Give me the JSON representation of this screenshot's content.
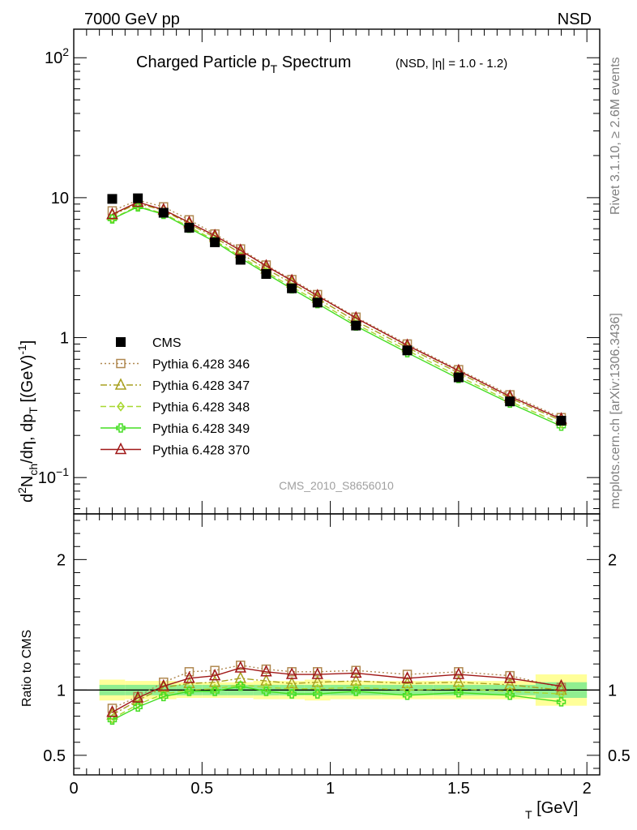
{
  "header": {
    "left": "7000 GeV pp",
    "right": "NSD"
  },
  "side_labels": {
    "rivet": "Rivet 3.1.10, ≥ 2.6M events",
    "mcplots": "mcplots.cern.ch [arXiv:1306.3436]"
  },
  "chart_data": [
    {
      "type": "line",
      "title": "Charged Particle p_T Spectrum",
      "title_parts": {
        "main": "Charged Particle p",
        "sub": "T",
        "tail": " Spectrum",
        "cut": "(NSD, |η| = 1.0 - 1.2)"
      },
      "ylabel": "d²N_ch/dη, dp_T [(GeV)⁻¹]",
      "ylabel_parts": {
        "a": "d",
        "sup2": "2",
        "b": "N",
        "sub_ch": "ch",
        "c": "/dη, dp",
        "sub_t": "T",
        "d": " [(GeV)",
        "sup_m1": "-1",
        "e": "]"
      },
      "xlabel": "p_T [GeV]",
      "xlabel_parts": {
        "a": "p",
        "sub": "T",
        "b": " [GeV]"
      },
      "yscale": "log",
      "xlim": [
        0,
        2.05
      ],
      "ylim": [
        0.055,
        160
      ],
      "yticks": [
        {
          "value": 0.1,
          "base": "10",
          "exp": "−1"
        },
        {
          "value": 1,
          "base": "1",
          "exp": ""
        },
        {
          "value": 10,
          "base": "10",
          "exp": ""
        },
        {
          "value": 100,
          "base": "10",
          "exp": "2"
        }
      ],
      "legend_position": "left-center",
      "watermark": "CMS_2010_S8656010",
      "series": [
        {
          "name": "CMS",
          "marker": "filled-square",
          "color": "#000000",
          "line": "none",
          "x": [
            0.15,
            0.25,
            0.35,
            0.45,
            0.55,
            0.65,
            0.75,
            0.85,
            0.95,
            1.1,
            1.3,
            1.5,
            1.7,
            1.9
          ],
          "y": [
            9.8,
            9.9,
            7.8,
            6.1,
            4.8,
            3.6,
            2.85,
            2.25,
            1.78,
            1.22,
            0.81,
            0.52,
            0.35,
            0.255
          ]
        },
        {
          "name": "Pythia 6.428 346",
          "marker": "open-square",
          "color": "#b08850",
          "line": "dotted",
          "x": [
            0.15,
            0.25,
            0.35,
            0.45,
            0.55,
            0.65,
            0.75,
            0.85,
            0.95,
            1.1,
            1.3,
            1.5,
            1.7,
            1.9
          ],
          "y": [
            8.05,
            9.6,
            8.6,
            6.95,
            5.5,
            4.3,
            3.3,
            2.6,
            2.03,
            1.4,
            0.9,
            0.59,
            0.39,
            0.268
          ]
        },
        {
          "name": "Pythia 6.428 347",
          "marker": "open-triangle",
          "color": "#a8a020",
          "line": "dashdot",
          "x": [
            0.15,
            0.25,
            0.35,
            0.45,
            0.55,
            0.65,
            0.75,
            0.85,
            0.95,
            1.1,
            1.3,
            1.5,
            1.7,
            1.9
          ],
          "y": [
            7.5,
            9.1,
            8.1,
            6.5,
            5.2,
            4.0,
            3.1,
            2.45,
            1.91,
            1.31,
            0.85,
            0.56,
            0.37,
            0.255
          ]
        },
        {
          "name": "Pythia 6.428 348",
          "marker": "open-diamond",
          "color": "#a8d830",
          "line": "dashed",
          "x": [
            0.15,
            0.25,
            0.35,
            0.45,
            0.55,
            0.65,
            0.75,
            0.85,
            0.95,
            1.1,
            1.3,
            1.5,
            1.7,
            1.9
          ],
          "y": [
            7.1,
            8.7,
            7.7,
            6.2,
            4.95,
            3.8,
            2.95,
            2.3,
            1.82,
            1.25,
            0.81,
            0.53,
            0.35,
            0.242
          ]
        },
        {
          "name": "Pythia 6.428 349",
          "marker": "open-cross",
          "color": "#44dd22",
          "line": "solid",
          "x": [
            0.15,
            0.25,
            0.35,
            0.45,
            0.55,
            0.65,
            0.75,
            0.85,
            0.95,
            1.1,
            1.3,
            1.5,
            1.7,
            1.9
          ],
          "y": [
            7.05,
            8.6,
            7.6,
            6.05,
            4.85,
            3.7,
            2.87,
            2.23,
            1.75,
            1.21,
            0.78,
            0.51,
            0.34,
            0.233
          ]
        },
        {
          "name": "Pythia 6.428 370",
          "marker": "open-triangle",
          "color": "#a01818",
          "line": "solid",
          "x": [
            0.15,
            0.25,
            0.35,
            0.45,
            0.55,
            0.65,
            0.75,
            0.85,
            0.95,
            1.1,
            1.3,
            1.5,
            1.7,
            1.9
          ],
          "y": [
            7.6,
            9.3,
            8.2,
            6.65,
            5.35,
            4.2,
            3.25,
            2.55,
            1.99,
            1.38,
            0.88,
            0.58,
            0.38,
            0.262
          ]
        }
      ]
    },
    {
      "type": "line",
      "title": "",
      "ylabel": "Ratio to CMS",
      "xlabel": "p_T [GeV]",
      "xlim": [
        0,
        2.05
      ],
      "ylim": [
        0.35,
        2.35
      ],
      "xticks": [
        {
          "value": 0,
          "label": "0"
        },
        {
          "value": 0.5,
          "label": "0.5"
        },
        {
          "value": 1,
          "label": "1"
        },
        {
          "value": 1.5,
          "label": "1.5"
        },
        {
          "value": 2,
          "label": "2"
        }
      ],
      "yticks": [
        {
          "value": 0.5,
          "label": "0.5"
        },
        {
          "value": 1,
          "label": "1"
        },
        {
          "value": 2,
          "label": "2"
        }
      ],
      "reference_line": 1,
      "uncertainty_bands": {
        "bins": [
          [
            0.1,
            0.2
          ],
          [
            0.2,
            0.3
          ],
          [
            0.3,
            0.4
          ],
          [
            0.4,
            0.5
          ],
          [
            0.5,
            0.6
          ],
          [
            0.6,
            0.7
          ],
          [
            0.7,
            0.8
          ],
          [
            0.8,
            0.9
          ],
          [
            0.9,
            1.0
          ],
          [
            1.0,
            1.2
          ],
          [
            1.2,
            1.4
          ],
          [
            1.4,
            1.6
          ],
          [
            1.6,
            1.8
          ],
          [
            1.8,
            2.0
          ]
        ],
        "stat_halfwidth": [
          0.04,
          0.04,
          0.04,
          0.04,
          0.04,
          0.04,
          0.04,
          0.04,
          0.04,
          0.04,
          0.04,
          0.04,
          0.04,
          0.06
        ],
        "total_halfwidth": [
          0.08,
          0.07,
          0.07,
          0.06,
          0.06,
          0.06,
          0.07,
          0.07,
          0.08,
          0.07,
          0.07,
          0.07,
          0.07,
          0.12
        ],
        "stat_color": "#90ee90",
        "total_color": "#ffff99"
      },
      "series": [
        {
          "name": "Pythia 6.428 346",
          "marker": "open-square",
          "color": "#b08850",
          "line": "dotted",
          "x": [
            0.15,
            0.25,
            0.35,
            0.45,
            0.55,
            0.65,
            0.75,
            0.85,
            0.95,
            1.1,
            1.3,
            1.5,
            1.7,
            1.9
          ],
          "y": [
            0.86,
            0.95,
            1.06,
            1.14,
            1.15,
            1.19,
            1.16,
            1.14,
            1.14,
            1.15,
            1.12,
            1.14,
            1.11,
            1.02
          ]
        },
        {
          "name": "Pythia 6.428 347",
          "marker": "open-triangle",
          "color": "#a8a020",
          "line": "dashdot",
          "x": [
            0.15,
            0.25,
            0.35,
            0.45,
            0.55,
            0.65,
            0.75,
            0.85,
            0.95,
            1.1,
            1.3,
            1.5,
            1.7,
            1.9
          ],
          "y": [
            0.81,
            0.92,
            1.02,
            1.05,
            1.06,
            1.09,
            1.07,
            1.05,
            1.06,
            1.07,
            1.05,
            1.06,
            1.04,
            1.0
          ]
        },
        {
          "name": "Pythia 6.428 348",
          "marker": "open-diamond",
          "color": "#a8d830",
          "line": "dashed",
          "x": [
            0.15,
            0.25,
            0.35,
            0.45,
            0.55,
            0.65,
            0.75,
            0.85,
            0.95,
            1.1,
            1.3,
            1.5,
            1.7,
            1.9
          ],
          "y": [
            0.78,
            0.89,
            0.97,
            1.0,
            1.01,
            1.04,
            1.02,
            1.01,
            1.01,
            1.02,
            1.0,
            1.01,
            0.99,
            0.97
          ]
        },
        {
          "name": "Pythia 6.428 349",
          "marker": "open-cross",
          "color": "#44dd22",
          "line": "solid",
          "x": [
            0.15,
            0.25,
            0.35,
            0.45,
            0.55,
            0.65,
            0.75,
            0.85,
            0.95,
            1.1,
            1.3,
            1.5,
            1.7,
            1.9
          ],
          "y": [
            0.77,
            0.87,
            0.95,
            0.99,
            0.99,
            1.03,
            0.99,
            0.97,
            0.97,
            0.99,
            0.96,
            0.98,
            0.96,
            0.91
          ]
        },
        {
          "name": "Pythia 6.428 370",
          "marker": "open-triangle",
          "color": "#a01818",
          "line": "solid",
          "x": [
            0.15,
            0.25,
            0.35,
            0.45,
            0.55,
            0.65,
            0.75,
            0.85,
            0.95,
            1.1,
            1.3,
            1.5,
            1.7,
            1.9
          ],
          "y": [
            0.83,
            0.94,
            1.03,
            1.09,
            1.11,
            1.17,
            1.14,
            1.12,
            1.12,
            1.13,
            1.09,
            1.12,
            1.09,
            1.03
          ]
        }
      ]
    }
  ]
}
